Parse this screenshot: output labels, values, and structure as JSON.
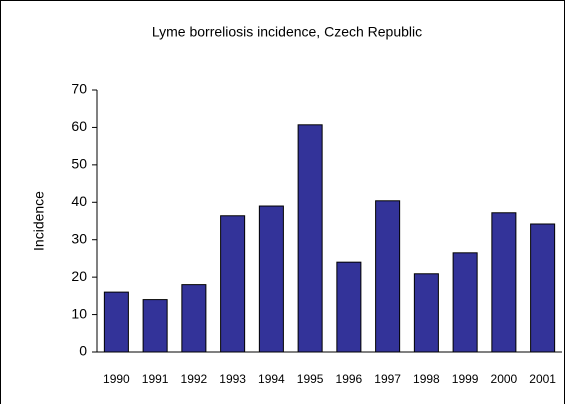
{
  "chart_data": {
    "type": "bar",
    "title": "Lyme borreliosis incidence, Czech Republic",
    "y_label": "Incidence",
    "categories": [
      "1990",
      "1991",
      "1992",
      "1993",
      "1994",
      "1995",
      "1996",
      "1997",
      "1998",
      "1999",
      "2000",
      "2001"
    ],
    "values": [
      16,
      14,
      18,
      36.4,
      39,
      60.7,
      24,
      40.4,
      20.9,
      26.5,
      37.2,
      34.2
    ],
    "color": "#333399",
    "ylim": [
      0,
      70
    ],
    "yticks": [
      0,
      10,
      20,
      30,
      40,
      50,
      60,
      70
    ],
    "grid": false
  }
}
